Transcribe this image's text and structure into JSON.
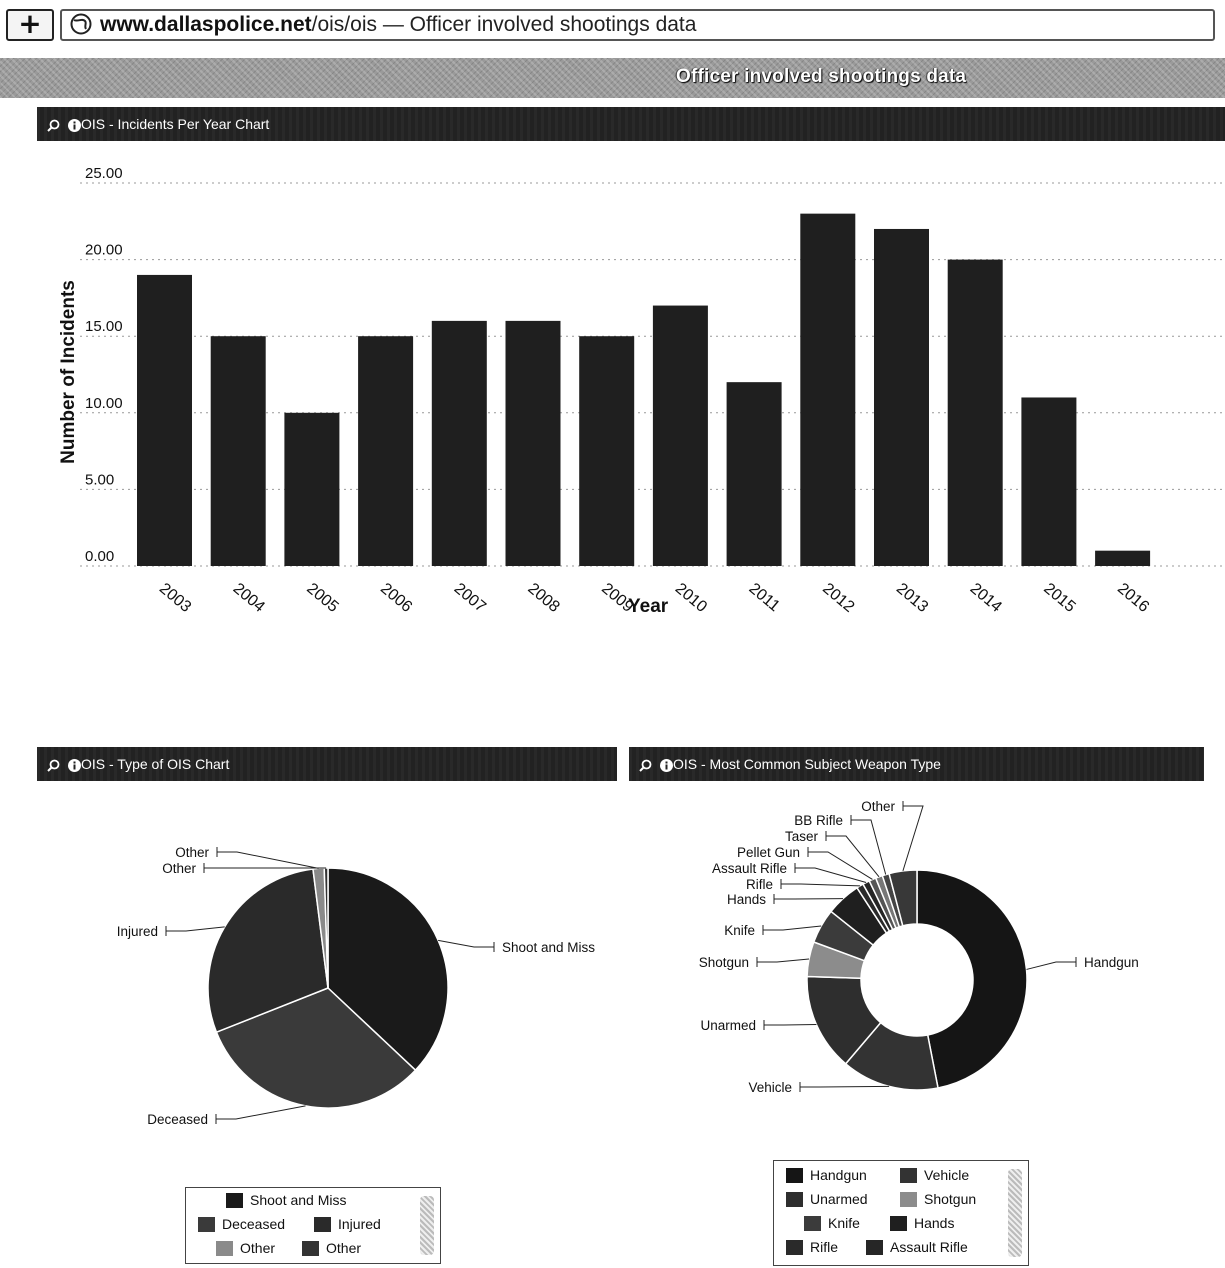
{
  "browser": {
    "new_tab_label": "+",
    "url_domain": "www.dallaspolice.net",
    "url_path": "/ois/ois",
    "tab_title": " — Officer involved shootings data"
  },
  "page": {
    "title": "Officer involved shootings data"
  },
  "panels": {
    "incidents": {
      "title": "OIS - Incidents Per Year Chart"
    },
    "type": {
      "title": "OIS - Type of OIS Chart"
    },
    "weapon": {
      "title": "OIS - Most Common Subject Weapon Type"
    }
  },
  "colors": {
    "bar": "#1f1f1f",
    "panel_header": "#222222",
    "header_band": "#9a9a9a"
  },
  "chart_data": [
    {
      "type": "bar",
      "title": "OIS - Incidents Per Year Chart",
      "xlabel": "Year",
      "ylabel": "Number of Incidents",
      "categories": [
        "2003",
        "2004",
        "2005",
        "2006",
        "2007",
        "2008",
        "2009",
        "2010",
        "2011",
        "2012",
        "2013",
        "2014",
        "2015",
        "2016"
      ],
      "values": [
        19,
        15,
        10,
        15,
        16,
        16,
        15,
        17,
        12,
        23,
        22,
        20,
        11,
        1
      ],
      "ylim": [
        0,
        25
      ],
      "yticks": [
        "0.00",
        "5.00",
        "10.00",
        "15.00",
        "20.00",
        "25.00"
      ],
      "grid": true
    },
    {
      "type": "pie",
      "title": "OIS - Type of OIS Chart",
      "labels": [
        "Shoot and Miss",
        "Deceased",
        "Injured",
        "Other",
        "Other"
      ],
      "values": [
        37,
        32,
        29,
        1.5,
        0.5
      ],
      "colors": [
        "#1a1a1a",
        "#3a3a3a",
        "#2a2a2a",
        "#8a8a8a",
        "#333333"
      ],
      "legend": "bottom"
    },
    {
      "type": "pie",
      "title": "OIS - Most Common Subject Weapon Type",
      "donut": true,
      "labels": [
        "Handgun",
        "Vehicle",
        "Unarmed",
        "Shotgun",
        "Knife",
        "Hands",
        "Rifle",
        "Assault Rifle",
        "Pellet Gun",
        "Taser",
        "BB Rifle",
        "Other"
      ],
      "values": [
        46,
        14,
        14,
        5,
        5,
        5,
        1,
        1,
        1,
        1,
        1,
        4
      ],
      "colors": [
        "#151515",
        "#333333",
        "#2e2e2e",
        "#8c8c8c",
        "#3b3b3b",
        "#1f1f1f",
        "#2a2a2a",
        "#262626",
        "#555555",
        "#777777",
        "#444444",
        "#383838"
      ],
      "legend": "bottom"
    }
  ]
}
